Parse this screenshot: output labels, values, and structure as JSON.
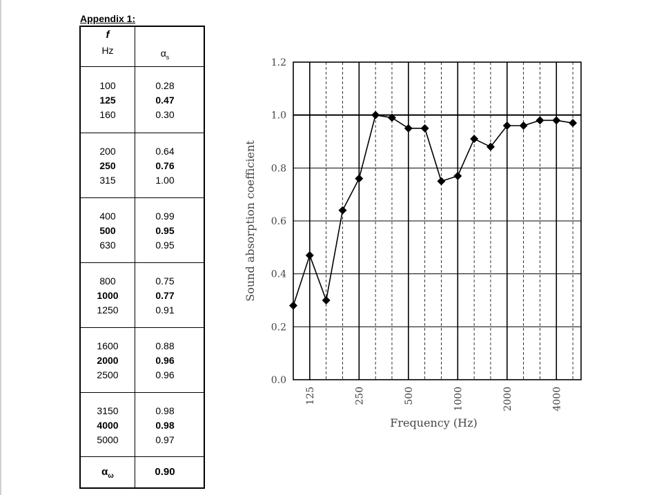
{
  "appendix": {
    "title": "Appendix 1:",
    "table": {
      "header_f": "f",
      "header_hz": "Hz",
      "header_alpha": "α",
      "header_alpha_sub": "s",
      "groups": [
        [
          {
            "f": "100",
            "a": "0.28",
            "bold": false
          },
          {
            "f": "125",
            "a": "0.47",
            "bold": true
          },
          {
            "f": "160",
            "a": "0.30",
            "bold": false
          }
        ],
        [
          {
            "f": "200",
            "a": "0.64",
            "bold": false
          },
          {
            "f": "250",
            "a": "0.76",
            "bold": true
          },
          {
            "f": "315",
            "a": "1.00",
            "bold": false
          }
        ],
        [
          {
            "f": "400",
            "a": "0.99",
            "bold": false
          },
          {
            "f": "500",
            "a": "0.95",
            "bold": true
          },
          {
            "f": "630",
            "a": "0.95",
            "bold": false
          }
        ],
        [
          {
            "f": "800",
            "a": "0.75",
            "bold": false
          },
          {
            "f": "1000",
            "a": "0.77",
            "bold": true
          },
          {
            "f": "1250",
            "a": "0.91",
            "bold": false
          }
        ],
        [
          {
            "f": "1600",
            "a": "0.88",
            "bold": false
          },
          {
            "f": "2000",
            "a": "0.96",
            "bold": true
          },
          {
            "f": "2500",
            "a": "0.96",
            "bold": false
          }
        ],
        [
          {
            "f": "3150",
            "a": "0.98",
            "bold": false
          },
          {
            "f": "4000",
            "a": "0.98",
            "bold": true
          },
          {
            "f": "5000",
            "a": "0.97",
            "bold": false
          }
        ]
      ],
      "aw_symbol": "α",
      "aw_symbol_sub": "ω",
      "aw_value": "0.90"
    }
  },
  "chart_data": {
    "type": "line",
    "title": "",
    "xlabel": "Frequency (Hz)",
    "ylabel": "Sound absorption coefficient",
    "x": [
      100,
      125,
      160,
      200,
      250,
      315,
      400,
      500,
      630,
      800,
      1000,
      1250,
      1600,
      2000,
      2500,
      3150,
      4000,
      5000
    ],
    "values": [
      0.28,
      0.47,
      0.3,
      0.64,
      0.76,
      1.0,
      0.99,
      0.95,
      0.95,
      0.75,
      0.77,
      0.91,
      0.88,
      0.96,
      0.96,
      0.98,
      0.98,
      0.97
    ],
    "xtick_labels": [
      "125",
      "250",
      "500",
      "1000",
      "2000",
      "4000"
    ],
    "ytick_labels": [
      "0.0",
      "0.2",
      "0.4",
      "0.6",
      "0.8",
      "1.0",
      "1.2"
    ],
    "ylim": [
      0,
      1.2
    ],
    "yticks": [
      0,
      0.2,
      0.4,
      0.6,
      0.8,
      1.0,
      1.2
    ],
    "x_scale": "log",
    "grid": true,
    "marker": "diamond",
    "line_color": "#000000"
  }
}
